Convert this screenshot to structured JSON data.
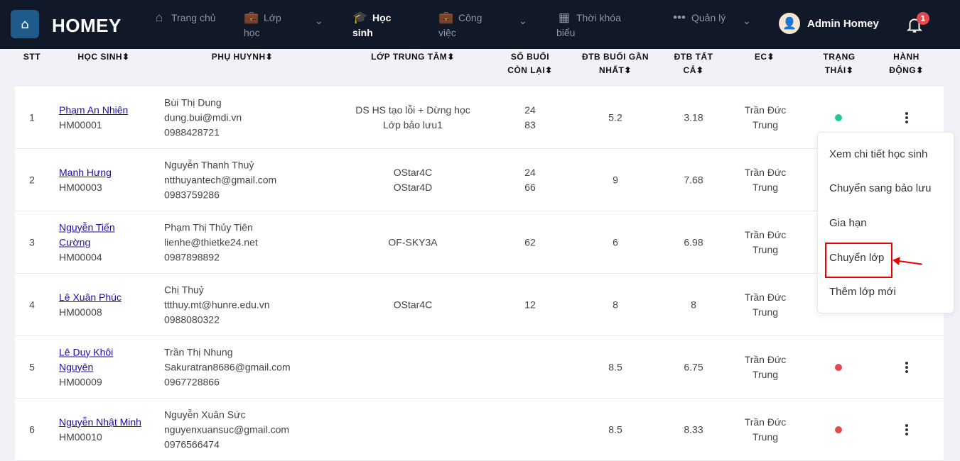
{
  "nav": {
    "brand": "HOMEY",
    "items": [
      {
        "label": "Trang chủ",
        "icon": "home-icon"
      },
      {
        "label": "Lớp học",
        "icon": "briefcase-icon"
      },
      {
        "label": "Học sinh",
        "icon": "graduation-cap-icon"
      },
      {
        "label": "Công việc",
        "icon": "briefcase-icon"
      },
      {
        "label": "Thời khóa biểu",
        "icon": "calendar-icon"
      },
      {
        "label": "Quản lý",
        "icon": "more-icon"
      }
    ],
    "user": "Admin Homey",
    "notifications": "1"
  },
  "table": {
    "headers": [
      "STT",
      "HỌC SINH",
      "PHỤ HUYNH",
      "LỚP TRUNG TÂM",
      "SỐ BUỔI CÒN LẠI",
      "ĐTB BUỔI GẦN NHẤT",
      "ĐTB TẤT CẢ",
      "EC",
      "TRẠNG THÁI",
      "HÀNH ĐỘNG"
    ],
    "rows": [
      {
        "stt": "1",
        "name": "Phạm An Nhiên",
        "code": "HM00001",
        "parent": "Bùi Thị Dung",
        "email": "dung.bui@mdi.vn",
        "phone": "0988428721",
        "class1": "DS HS tạo lỗi + Dừng học",
        "class2": "Lớp bảo lưu1",
        "s1": "24",
        "s2": "83",
        "recent": "5.2",
        "all": "3.18",
        "ec": "Trần Đức Trung",
        "status": "#20c997"
      },
      {
        "stt": "2",
        "name": "Mạnh Hưng",
        "code": "HM00003",
        "parent": "Nguyễn Thanh Thuỷ",
        "email": "ntthuyantech@gmail.com",
        "phone": "0983759286",
        "class1": "OStar4C",
        "class2": "OStar4D",
        "s1": "24",
        "s2": "66",
        "recent": "9",
        "all": "7.68",
        "ec": "Trần Đức Trung",
        "status": ""
      },
      {
        "stt": "3",
        "name": "Nguyễn Tiến Cường",
        "code": "HM00004",
        "parent": "Phạm Thị Thủy Tiên",
        "email": "lienhe@thietke24.net",
        "phone": "0987898892",
        "class1": "OF-SKY3A",
        "class2": "",
        "s1": "62",
        "s2": "",
        "recent": "6",
        "all": "6.98",
        "ec": "Trần Đức Trung",
        "status": ""
      },
      {
        "stt": "4",
        "name": "Lê Xuân Phúc",
        "code": "HM00008",
        "parent": "Chị Thuỷ",
        "email": "ttthuy.mt@hunre.edu.vn",
        "phone": "0988080322",
        "class1": "OStar4C",
        "class2": "",
        "s1": "12",
        "s2": "",
        "recent": "8",
        "all": "8",
        "ec": "Trần Đức Trung",
        "status": ""
      },
      {
        "stt": "5",
        "name": "Lê Duy Khôi Nguyên",
        "code": "HM00009",
        "parent": "Trần Thị Nhung",
        "email": "Sakuratran8686@gmail.com",
        "phone": "0967728866",
        "class1": "",
        "class2": "",
        "s1": "",
        "s2": "",
        "recent": "8.5",
        "all": "6.75",
        "ec": "Trần Đức Trung",
        "status": "#e5484d"
      },
      {
        "stt": "6",
        "name": "Nguyễn Nhật Minh",
        "code": "HM00010",
        "parent": "Nguyễn Xuân Sức",
        "email": "nguyenxuansuc@gmail.com",
        "phone": "0976566474",
        "class1": "",
        "class2": "",
        "s1": "",
        "s2": "",
        "recent": "8.5",
        "all": "8.33",
        "ec": "Trần Đức Trung",
        "status": "#e5484d"
      }
    ]
  },
  "menu": [
    "Xem chi tiết học sinh",
    "Chuyển sang bảo lưu",
    "Gia hạn",
    "Chuyển lớp",
    "Thêm lớp mới"
  ]
}
